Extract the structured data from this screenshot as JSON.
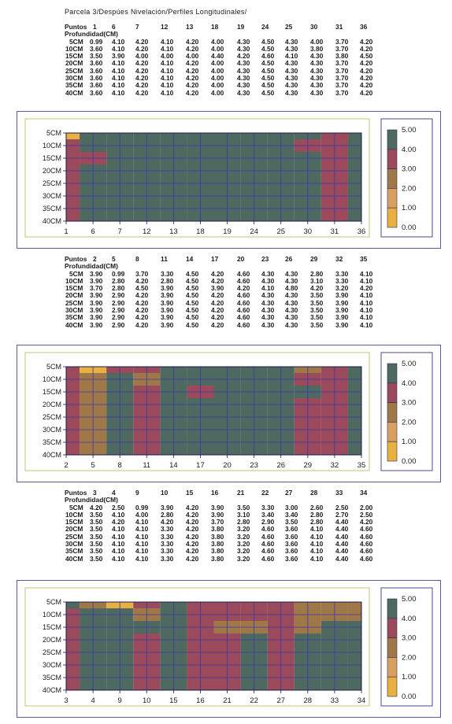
{
  "title": "Parcela 3/Despúes Nivelación/Perfiles Longitudinales/",
  "sections": [
    {
      "puntos_label": "Puntos",
      "prof_label": "Profundidad(CM)",
      "points": [
        "1",
        "6",
        "7",
        "12",
        "13",
        "18",
        "19",
        "24",
        "25",
        "30",
        "31",
        "36"
      ],
      "rows": [
        {
          "label": "5CM",
          "values": [
            "0.99",
            "4.10",
            "4.20",
            "4.10",
            "4.20",
            "4.00",
            "4.30",
            "4.50",
            "4.30",
            "4.00",
            "3.70",
            "4.20"
          ]
        },
        {
          "label": "10CM",
          "values": [
            "3.60",
            "4.10",
            "4.20",
            "4.10",
            "4.20",
            "4.00",
            "4.30",
            "4.50",
            "4.30",
            "3.80",
            "3.70",
            "4.20"
          ]
        },
        {
          "label": "15CM",
          "values": [
            "3.50",
            "3.90",
            "4.00",
            "4.00",
            "4.00",
            "4.40",
            "4.20",
            "4.60",
            "4.10",
            "4.30",
            "3.80",
            "4.50"
          ]
        },
        {
          "label": "20CM",
          "values": [
            "3.60",
            "4.10",
            "4.20",
            "4.10",
            "4.20",
            "4.00",
            "4.30",
            "4.50",
            "4.30",
            "4.30",
            "3.70",
            "4.20"
          ]
        },
        {
          "label": "25CM",
          "values": [
            "3.60",
            "4.10",
            "4.20",
            "4.10",
            "4.20",
            "4.00",
            "4.30",
            "4.50",
            "4.30",
            "4.30",
            "3.70",
            "4.20"
          ]
        },
        {
          "label": "30CM",
          "values": [
            "3.60",
            "4.10",
            "4.20",
            "4.10",
            "4.20",
            "4.00",
            "4.30",
            "4.50",
            "4.30",
            "4.30",
            "3.70",
            "4.20"
          ]
        },
        {
          "label": "35CM",
          "values": [
            "3.60",
            "4.10",
            "4.20",
            "4.10",
            "4.20",
            "4.00",
            "4.30",
            "4.50",
            "4.30",
            "4.30",
            "3.70",
            "4.20"
          ]
        },
        {
          "label": "40CM",
          "values": [
            "3.60",
            "4.10",
            "4.20",
            "4.10",
            "4.20",
            "4.00",
            "4.30",
            "4.50",
            "4.30",
            "4.30",
            "3.70",
            "4.20"
          ]
        }
      ]
    },
    {
      "puntos_label": "Puntos",
      "prof_label": "Profundidad(CM)",
      "points": [
        "2",
        "5",
        "8",
        "11",
        "14",
        "17",
        "20",
        "23",
        "26",
        "29",
        "32",
        "35"
      ],
      "rows": [
        {
          "label": "5CM",
          "values": [
            "3.90",
            "0.99",
            "3.70",
            "3.30",
            "4.50",
            "4.20",
            "4.60",
            "4.30",
            "4.30",
            "2.80",
            "3.30",
            "4.10"
          ]
        },
        {
          "label": "10CM",
          "values": [
            "3.90",
            "2.80",
            "4.20",
            "2.80",
            "4.50",
            "4.20",
            "4.60",
            "4.30",
            "4.30",
            "3.10",
            "3.30",
            "4.10"
          ]
        },
        {
          "label": "15CM",
          "values": [
            "3.70",
            "2.80",
            "4.50",
            "3.90",
            "4.50",
            "3.90",
            "4.20",
            "4.10",
            "4.80",
            "4.20",
            "3.20",
            "4.20"
          ]
        },
        {
          "label": "20CM",
          "values": [
            "3.90",
            "2.90",
            "4.20",
            "3.90",
            "4.50",
            "4.20",
            "4.60",
            "4.30",
            "4.30",
            "3.50",
            "3.90",
            "4.10"
          ]
        },
        {
          "label": "25CM",
          "values": [
            "3.90",
            "2.90",
            "4.20",
            "3.90",
            "4.50",
            "4.20",
            "4.60",
            "4.30",
            "4.30",
            "3.50",
            "3.90",
            "4.10"
          ]
        },
        {
          "label": "30CM",
          "values": [
            "3.90",
            "2.90",
            "4.20",
            "3.90",
            "4.50",
            "4.20",
            "4.60",
            "4.30",
            "4.30",
            "3.50",
            "3.90",
            "4.10"
          ]
        },
        {
          "label": "35CM",
          "values": [
            "3.90",
            "2.90",
            "4.20",
            "3.90",
            "4.50",
            "4.20",
            "4.60",
            "4.30",
            "4.30",
            "3.50",
            "3.90",
            "4.10"
          ]
        },
        {
          "label": "40CM",
          "values": [
            "3.90",
            "2.90",
            "4.20",
            "3.90",
            "4.50",
            "4.20",
            "4.60",
            "4.30",
            "4.30",
            "3.50",
            "3.90",
            "4.10"
          ]
        }
      ]
    },
    {
      "puntos_label": "Puntos",
      "prof_label": "Profundidad(CM)",
      "points": [
        "3",
        "4",
        "9",
        "10",
        "15",
        "16",
        "21",
        "22",
        "27",
        "28",
        "33",
        "34"
      ],
      "rows": [
        {
          "label": "5CM",
          "values": [
            "4.20",
            "2.50",
            "0.99",
            "3.90",
            "4.20",
            "3.90",
            "3.50",
            "3.30",
            "3.00",
            "2.60",
            "2.50",
            "2.00"
          ]
        },
        {
          "label": "10CM",
          "values": [
            "3.50",
            "4.10",
            "4.00",
            "2.80",
            "4.20",
            "3.90",
            "3.10",
            "3.40",
            "3.40",
            "2.80",
            "2.70",
            "2.50"
          ]
        },
        {
          "label": "15CM",
          "values": [
            "3.50",
            "4.20",
            "4.10",
            "4.20",
            "4.20",
            "3.70",
            "2.80",
            "2.90",
            "3.50",
            "2.80",
            "4.40",
            "4.20"
          ]
        },
        {
          "label": "20CM",
          "values": [
            "3.50",
            "4.10",
            "4.10",
            "3.30",
            "4.20",
            "3.80",
            "3.20",
            "4.60",
            "3.60",
            "4.10",
            "4.40",
            "4.60"
          ]
        },
        {
          "label": "25CM",
          "values": [
            "3.50",
            "4.10",
            "4.10",
            "3.30",
            "4.20",
            "3.80",
            "3.20",
            "4.60",
            "3.60",
            "4.10",
            "4.40",
            "4.60"
          ]
        },
        {
          "label": "30CM",
          "values": [
            "3.50",
            "4.10",
            "4.10",
            "3.30",
            "4.20",
            "3.80",
            "3.20",
            "4.60",
            "3.60",
            "4.10",
            "4.40",
            "4.60"
          ]
        },
        {
          "label": "35CM",
          "values": [
            "3.50",
            "4.10",
            "4.10",
            "3.30",
            "4.20",
            "3.80",
            "3.20",
            "4.60",
            "3.60",
            "4.10",
            "4.40",
            "4.60"
          ]
        },
        {
          "label": "40CM",
          "values": [
            "3.50",
            "4.10",
            "4.10",
            "3.30",
            "4.20",
            "3.80",
            "3.20",
            "4.60",
            "3.60",
            "4.10",
            "4.40",
            "4.60"
          ]
        }
      ]
    }
  ],
  "chart_data": [
    {
      "type": "heatmap",
      "x": [
        "1",
        "6",
        "7",
        "12",
        "13",
        "18",
        "19",
        "24",
        "25",
        "30",
        "31",
        "36"
      ],
      "y": [
        "5CM",
        "10CM",
        "15CM",
        "20CM",
        "25CM",
        "30CM",
        "35CM",
        "40CM"
      ],
      "values": [
        [
          0.99,
          4.1,
          4.2,
          4.1,
          4.2,
          4.0,
          4.3,
          4.5,
          4.3,
          4.0,
          3.7,
          4.2
        ],
        [
          3.6,
          4.1,
          4.2,
          4.1,
          4.2,
          4.0,
          4.3,
          4.5,
          4.3,
          3.8,
          3.7,
          4.2
        ],
        [
          3.5,
          3.9,
          4.0,
          4.0,
          4.0,
          4.4,
          4.2,
          4.6,
          4.1,
          4.3,
          3.8,
          4.5
        ],
        [
          3.6,
          4.1,
          4.2,
          4.1,
          4.2,
          4.0,
          4.3,
          4.5,
          4.3,
          4.3,
          3.7,
          4.2
        ],
        [
          3.6,
          4.1,
          4.2,
          4.1,
          4.2,
          4.0,
          4.3,
          4.5,
          4.3,
          4.3,
          3.7,
          4.2
        ],
        [
          3.6,
          4.1,
          4.2,
          4.1,
          4.2,
          4.0,
          4.3,
          4.5,
          4.3,
          4.3,
          3.7,
          4.2
        ],
        [
          3.6,
          4.1,
          4.2,
          4.1,
          4.2,
          4.0,
          4.3,
          4.5,
          4.3,
          4.3,
          3.7,
          4.2
        ],
        [
          3.6,
          4.1,
          4.2,
          4.1,
          4.2,
          4.0,
          4.3,
          4.5,
          4.3,
          4.3,
          3.7,
          4.2
        ]
      ],
      "legend_ticks": [
        "5.00",
        "4.00",
        "3.00",
        "2.00",
        "1.00",
        "0.00"
      ],
      "zlim": [
        0,
        5
      ],
      "legend": "right",
      "grid": true
    },
    {
      "type": "heatmap",
      "x": [
        "2",
        "5",
        "8",
        "11",
        "14",
        "17",
        "20",
        "23",
        "26",
        "29",
        "32",
        "35"
      ],
      "y": [
        "5CM",
        "10CM",
        "15CM",
        "20CM",
        "25CM",
        "30CM",
        "35CM",
        "40CM"
      ],
      "values": [
        [
          3.9,
          0.99,
          3.7,
          3.3,
          4.5,
          4.2,
          4.6,
          4.3,
          4.3,
          2.8,
          3.3,
          4.1
        ],
        [
          3.9,
          2.8,
          4.2,
          2.8,
          4.5,
          4.2,
          4.6,
          4.3,
          4.3,
          3.1,
          3.3,
          4.1
        ],
        [
          3.7,
          2.8,
          4.5,
          3.9,
          4.5,
          3.9,
          4.2,
          4.1,
          4.8,
          4.2,
          3.2,
          4.2
        ],
        [
          3.9,
          2.9,
          4.2,
          3.9,
          4.5,
          4.2,
          4.6,
          4.3,
          4.3,
          3.5,
          3.9,
          4.1
        ],
        [
          3.9,
          2.9,
          4.2,
          3.9,
          4.5,
          4.2,
          4.6,
          4.3,
          4.3,
          3.5,
          3.9,
          4.1
        ],
        [
          3.9,
          2.9,
          4.2,
          3.9,
          4.5,
          4.2,
          4.6,
          4.3,
          4.3,
          3.5,
          3.9,
          4.1
        ],
        [
          3.9,
          2.9,
          4.2,
          3.9,
          4.5,
          4.2,
          4.6,
          4.3,
          4.3,
          3.5,
          3.9,
          4.1
        ],
        [
          3.9,
          2.9,
          4.2,
          3.9,
          4.5,
          4.2,
          4.6,
          4.3,
          4.3,
          3.5,
          3.9,
          4.1
        ]
      ],
      "legend_ticks": [
        "5.00",
        "4.00",
        "3.00",
        "2.00",
        "1.00",
        "0.00"
      ],
      "zlim": [
        0,
        5
      ],
      "legend": "right",
      "grid": true
    },
    {
      "type": "heatmap",
      "x": [
        "3",
        "4",
        "9",
        "10",
        "15",
        "16",
        "21",
        "22",
        "27",
        "28",
        "33",
        "34"
      ],
      "y": [
        "5CM",
        "10CM",
        "15CM",
        "20CM",
        "25CM",
        "30CM",
        "35CM",
        "40CM"
      ],
      "values": [
        [
          4.2,
          2.5,
          0.99,
          3.9,
          4.2,
          3.9,
          3.5,
          3.3,
          3.0,
          2.6,
          2.5,
          2.0
        ],
        [
          3.5,
          4.1,
          4.0,
          2.8,
          4.2,
          3.9,
          3.1,
          3.4,
          3.4,
          2.8,
          2.7,
          2.5
        ],
        [
          3.5,
          4.2,
          4.1,
          4.2,
          4.2,
          3.7,
          2.8,
          2.9,
          3.5,
          2.8,
          4.4,
          4.2
        ],
        [
          3.5,
          4.1,
          4.1,
          3.3,
          4.2,
          3.8,
          3.2,
          4.6,
          3.6,
          4.1,
          4.4,
          4.6
        ],
        [
          3.5,
          4.1,
          4.1,
          3.3,
          4.2,
          3.8,
          3.2,
          4.6,
          3.6,
          4.1,
          4.4,
          4.6
        ],
        [
          3.5,
          4.1,
          4.1,
          3.3,
          4.2,
          3.8,
          3.2,
          4.6,
          3.6,
          4.1,
          4.4,
          4.6
        ],
        [
          3.5,
          4.1,
          4.1,
          3.3,
          4.2,
          3.8,
          3.2,
          4.6,
          3.6,
          4.1,
          4.4,
          4.6
        ],
        [
          3.5,
          4.1,
          4.1,
          3.3,
          4.2,
          3.8,
          3.2,
          4.6,
          3.6,
          4.1,
          4.4,
          4.6
        ]
      ],
      "legend_ticks": [
        "5.00",
        "4.00",
        "3.00",
        "2.00",
        "1.00",
        "0.00"
      ],
      "zlim": [
        0,
        5
      ],
      "legend": "right",
      "grid": true
    }
  ],
  "colors": {
    "band_0_1": "#e8b040",
    "band_1_2": "#d8a060",
    "band_2_3": "#a07848",
    "band_3_4": "#9a4a5a",
    "band_4_5": "#4e6a60",
    "grid": "#3838a8",
    "panel_border": "#5a5a9a",
    "frame": "#c8c070"
  }
}
